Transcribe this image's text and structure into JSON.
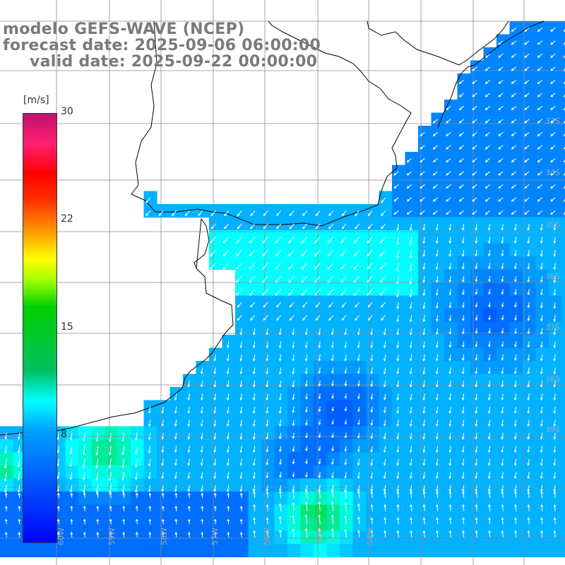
{
  "title": {
    "line1": "modelo GEFS-WAVE (NCEP)",
    "line2": "forecast date: 2025-09-06 06:00:00",
    "line3": "valid date: 2025-09-22 00:00:00"
  },
  "colorbar": {
    "unit": "[m/s]",
    "ticks": [
      {
        "label": "30",
        "value": 30
      },
      {
        "label": "22",
        "value": 22
      },
      {
        "label": "15",
        "value": 15
      },
      {
        "label": "8",
        "value": 8
      }
    ],
    "min": 0,
    "max": 30
  },
  "latitude_labels": [
    "33S",
    "34S",
    "35S",
    "36S",
    "37S",
    "38S",
    "39S"
  ],
  "longitude_labels": [
    "60W",
    "59W",
    "58W",
    "57W",
    "56W",
    "55W",
    "54W"
  ],
  "colors": {
    "land": "#ffffff",
    "grid": "#8c8c8c",
    "coast": "#000000",
    "arrow": "#ffffff",
    "title": "#7a7a7a"
  }
}
